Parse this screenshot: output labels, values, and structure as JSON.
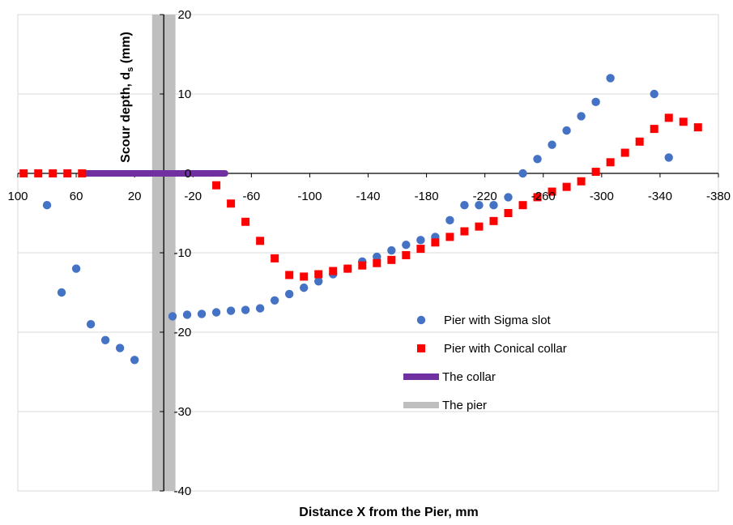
{
  "chart_data": {
    "type": "scatter",
    "title": "",
    "xlabel": "Distance X from the Pier, mm",
    "ylabel": {
      "main": "Scour depth, d",
      "sub": "s",
      "unit": " (mm)"
    },
    "xlim": [
      100,
      -380
    ],
    "ylim": [
      -40,
      20
    ],
    "x_ticks": [
      100,
      60,
      20,
      -20,
      -60,
      -100,
      -140,
      -180,
      -220,
      -260,
      -300,
      -340,
      -380
    ],
    "x_tick_labels": [
      "100",
      "60",
      "20",
      "-20",
      "-60",
      "-100",
      "-140",
      "-180",
      "-220",
      "-260",
      "-300",
      "-340",
      "-380"
    ],
    "y_ticks": [
      -40,
      -30,
      -20,
      -10,
      0,
      10,
      20
    ],
    "y_tick_labels": [
      "-40",
      "-30",
      "-20",
      "-10",
      "0",
      "10",
      "20"
    ],
    "grid": "horizontal",
    "legend": {
      "position": "bottom-right",
      "entries": [
        {
          "label": "Pier with Sigma slot",
          "marker": "circle",
          "color": "#4472C4"
        },
        {
          "label": "Pier with Conical collar",
          "marker": "square",
          "color": "#FF0000"
        },
        {
          "label": "The collar",
          "marker": "thick-line",
          "color": "#7030A0"
        },
        {
          "label": "The pier",
          "marker": "thick-line",
          "color": "#BFBFBF"
        }
      ]
    },
    "series": [
      {
        "name": "Pier with Sigma slot",
        "marker": "circle",
        "color": "#4472C4",
        "points": [
          [
            80,
            -4
          ],
          [
            70,
            -15
          ],
          [
            60,
            -12
          ],
          [
            50,
            -19
          ],
          [
            40,
            -21
          ],
          [
            30,
            -22
          ],
          [
            20,
            -23.5
          ],
          [
            -6,
            -18
          ],
          [
            -16,
            -17.8
          ],
          [
            -26,
            -17.7
          ],
          [
            -36,
            -17.5
          ],
          [
            -46,
            -17.3
          ],
          [
            -56,
            -17.2
          ],
          [
            -66,
            -17
          ],
          [
            -76,
            -16
          ],
          [
            -86,
            -15.2
          ],
          [
            -96,
            -14.4
          ],
          [
            -106,
            -13.6
          ],
          [
            -116,
            -12.7
          ],
          [
            -126,
            -12
          ],
          [
            -136,
            -11.1
          ],
          [
            -146,
            -10.5
          ],
          [
            -156,
            -9.7
          ],
          [
            -166,
            -9
          ],
          [
            -176,
            -8.4
          ],
          [
            -186,
            -8
          ],
          [
            -196,
            -5.9
          ],
          [
            -206,
            -4
          ],
          [
            -216,
            -4
          ],
          [
            -226,
            -4
          ],
          [
            -236,
            -3
          ],
          [
            -246,
            0
          ],
          [
            -256,
            1.8
          ],
          [
            -266,
            3.6
          ],
          [
            -276,
            5.4
          ],
          [
            -286,
            7.2
          ],
          [
            -296,
            9
          ],
          [
            -306,
            12
          ],
          [
            -336,
            10
          ],
          [
            -346,
            2
          ]
        ]
      },
      {
        "name": "Pier with Conical collar",
        "marker": "square",
        "color": "#FF0000",
        "points": [
          [
            96,
            0
          ],
          [
            86,
            0
          ],
          [
            76,
            0
          ],
          [
            66,
            0
          ],
          [
            56,
            0
          ],
          [
            -36,
            -1.5
          ],
          [
            -46,
            -3.8
          ],
          [
            -56,
            -6.1
          ],
          [
            -66,
            -8.5
          ],
          [
            -76,
            -10.7
          ],
          [
            -86,
            -12.8
          ],
          [
            -96,
            -13
          ],
          [
            -106,
            -12.7
          ],
          [
            -116,
            -12.3
          ],
          [
            -126,
            -12
          ],
          [
            -136,
            -11.6
          ],
          [
            -146,
            -11.3
          ],
          [
            -156,
            -10.9
          ],
          [
            -166,
            -10.3
          ],
          [
            -176,
            -9.5
          ],
          [
            -186,
            -8.7
          ],
          [
            -196,
            -8
          ],
          [
            -206,
            -7.3
          ],
          [
            -216,
            -6.7
          ],
          [
            -226,
            -6
          ],
          [
            -236,
            -5
          ],
          [
            -246,
            -4
          ],
          [
            -256,
            -3
          ],
          [
            -266,
            -2.3
          ],
          [
            -276,
            -1.7
          ],
          [
            -286,
            -1
          ],
          [
            -296,
            0.2
          ],
          [
            -306,
            1.4
          ],
          [
            -316,
            2.6
          ],
          [
            -326,
            4
          ],
          [
            -336,
            5.6
          ],
          [
            -346,
            7
          ],
          [
            -356,
            6.5
          ],
          [
            -366,
            5.8
          ]
        ]
      },
      {
        "name": "The collar",
        "type": "line",
        "color": "#7030A0",
        "points": [
          [
            54,
            0
          ],
          [
            -42,
            0
          ]
        ]
      },
      {
        "name": "The pier",
        "type": "band",
        "color": "#BFBFBF",
        "x_range": [
          8,
          -8
        ],
        "y_range": [
          -40,
          20
        ]
      }
    ]
  }
}
